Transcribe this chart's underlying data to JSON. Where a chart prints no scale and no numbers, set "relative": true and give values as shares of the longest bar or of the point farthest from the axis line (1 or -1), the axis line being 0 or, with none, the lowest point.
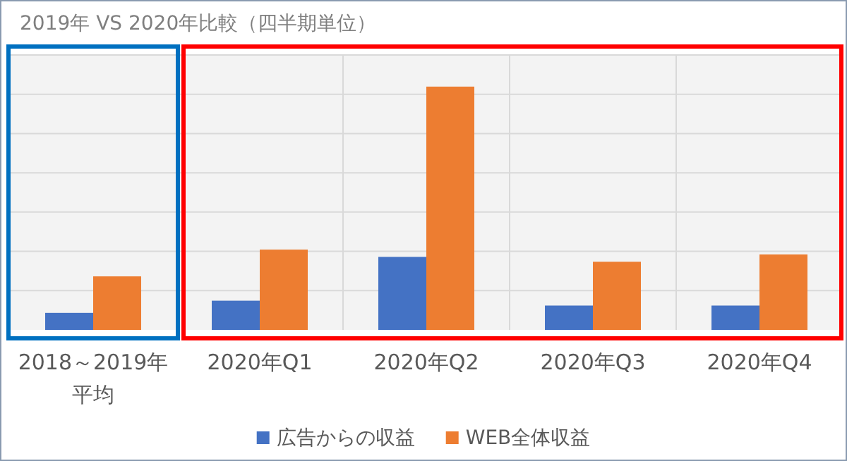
{
  "chart_data": {
    "type": "bar",
    "title": "2019年 VS 2020年比較（四半期単位）",
    "relative": true,
    "grid": true,
    "legend": "bottom",
    "categories": [
      "2018～2019年平均",
      "2020年Q1",
      "2020年Q2",
      "2020年Q3",
      "2020年Q4"
    ],
    "series": [
      {
        "name": "広告からの収益",
        "color": "#4472c4",
        "values": [
          0.07,
          0.12,
          0.3,
          0.1,
          0.1
        ]
      },
      {
        "name": "WEB全体収益",
        "color": "#ed7d31",
        "values": [
          0.22,
          0.33,
          1,
          0.28,
          0.31
        ]
      }
    ]
  }
}
